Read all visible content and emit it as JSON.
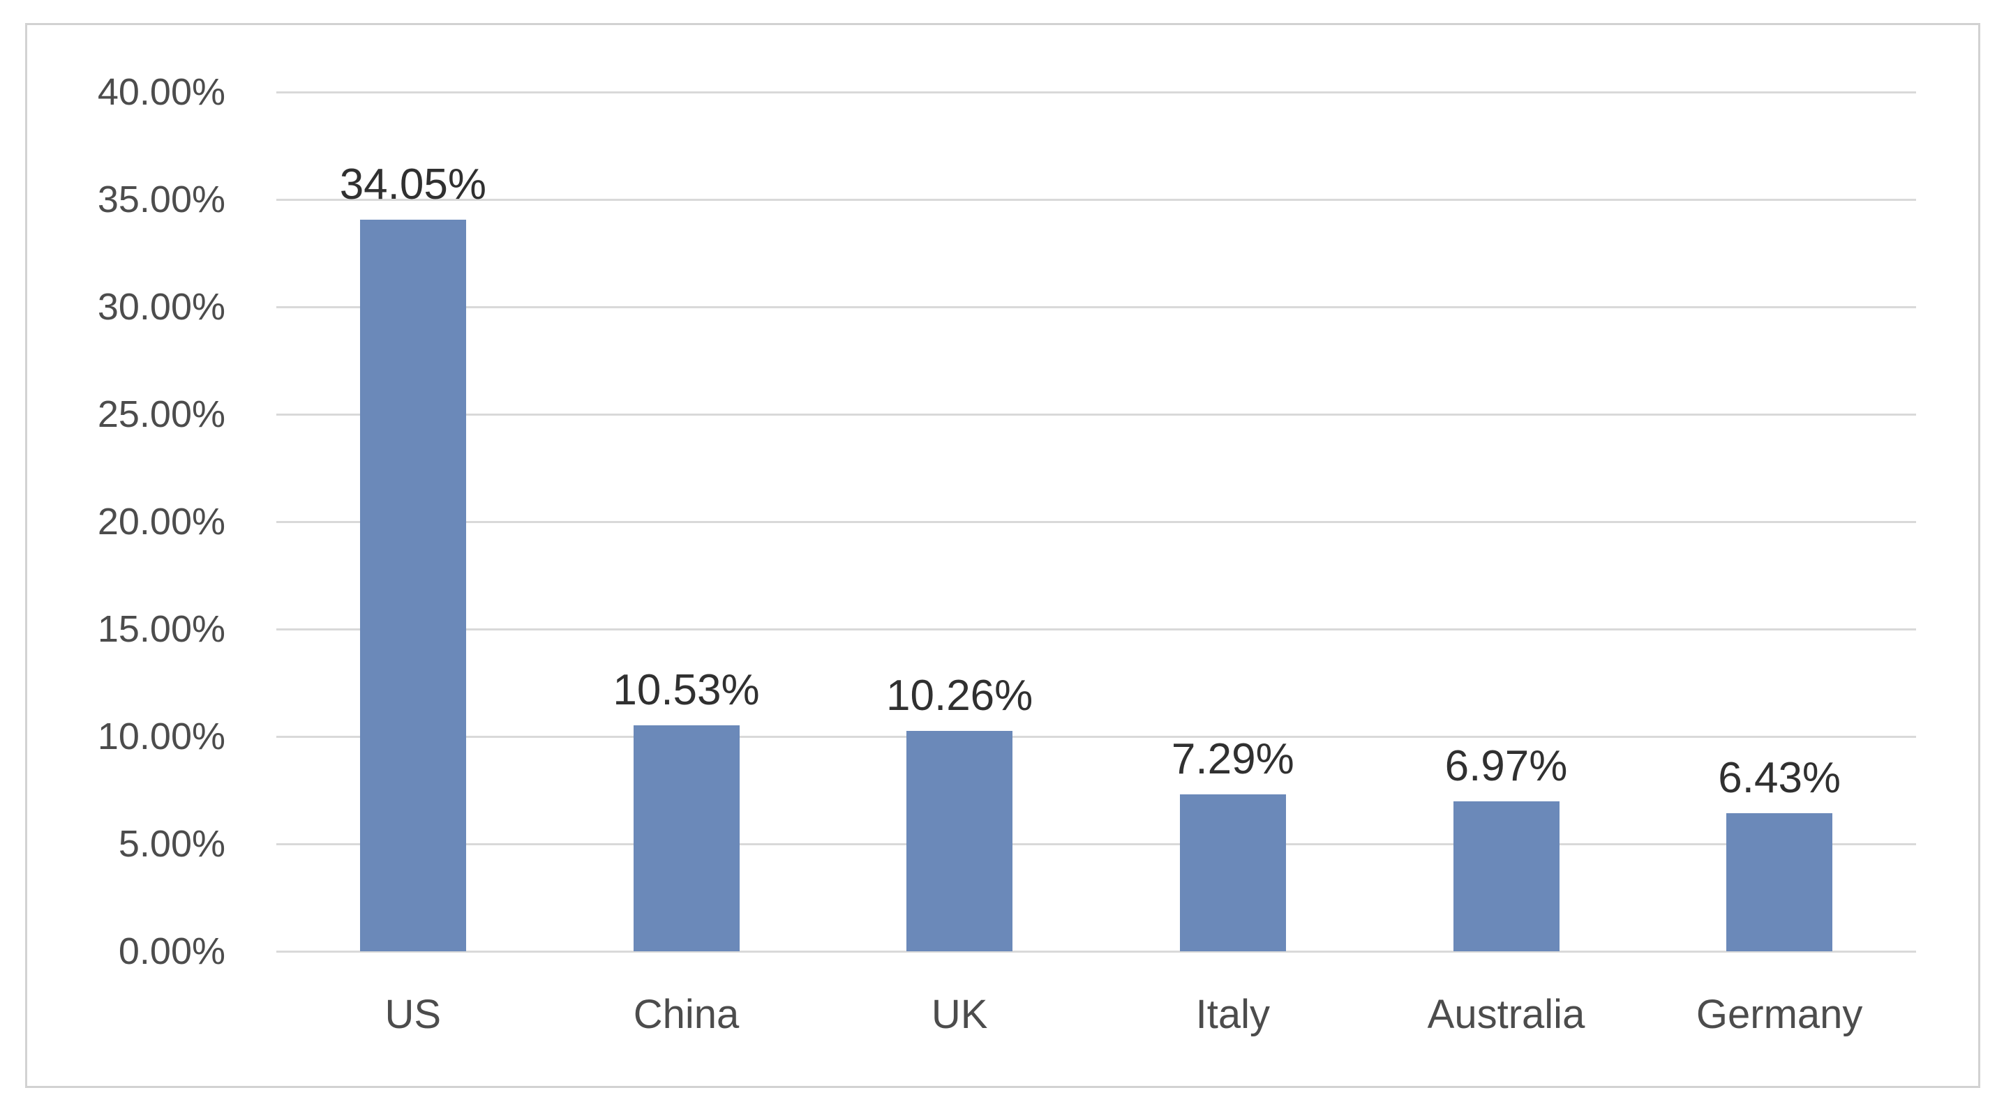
{
  "chart_data": {
    "type": "bar",
    "title": "",
    "xlabel": "",
    "ylabel": "",
    "categories": [
      "US",
      "China",
      "UK",
      "Italy",
      "Australia",
      "Germany"
    ],
    "values": [
      34.05,
      10.53,
      10.26,
      7.29,
      6.97,
      6.43
    ],
    "data_labels": [
      "34.05%",
      "10.53%",
      "10.26%",
      "7.29%",
      "6.97%",
      "6.43%"
    ],
    "ylim": [
      0,
      40
    ],
    "ytick_step": 5,
    "ytick_labels": [
      "0.00%",
      "5.00%",
      "10.00%",
      "15.00%",
      "20.00%",
      "25.00%",
      "30.00%",
      "35.00%",
      "40.00%"
    ],
    "grid": true,
    "legend": false,
    "colors": {
      "bar": "#6b89b9",
      "gridline": "#d9d9d9",
      "frame_border": "#d2d2d2",
      "tick_label": "#4c4c4c",
      "data_label": "#303030",
      "background": "#ffffff"
    }
  }
}
